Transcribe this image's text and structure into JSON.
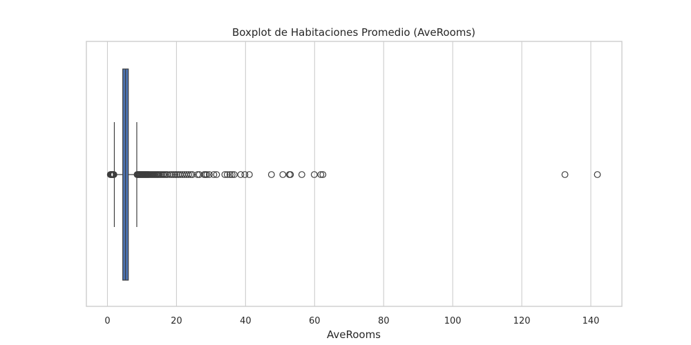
{
  "chart_data": {
    "type": "boxplot",
    "orientation": "horizontal",
    "title": "Boxplot de Habitaciones Promedio (AveRooms)",
    "xlabel": "AveRooms",
    "ylabel": "",
    "xlim": [
      -6.1,
      149
    ],
    "xticks": [
      0,
      20,
      40,
      60,
      80,
      100,
      120,
      140
    ],
    "grid": "vertical",
    "colors": {
      "box": "#4c72b0",
      "line": "#3d3d3d",
      "grid": "#cccccc"
    },
    "series": [
      {
        "whisker_low": 2.0,
        "q1": 4.44,
        "median": 5.23,
        "q3": 6.05,
        "whisker_high": 8.5,
        "outliers": [
          0.85,
          1.0,
          1.13,
          1.26,
          1.38,
          1.5,
          1.62,
          1.74,
          1.86,
          8.6,
          8.8,
          9.0,
          9.2,
          9.4,
          9.6,
          9.8,
          10.0,
          10.2,
          10.4,
          10.6,
          10.8,
          11.0,
          11.2,
          11.4,
          11.6,
          11.8,
          12.0,
          12.3,
          12.6,
          12.9,
          13.2,
          13.5,
          13.8,
          14.1,
          14.4,
          14.7,
          15.0,
          15.4,
          15.8,
          16.2,
          16.6,
          17.0,
          17.4,
          18.1,
          18.6,
          19.1,
          19.6,
          20.1,
          20.6,
          21.1,
          21.7,
          22.3,
          22.9,
          23.5,
          24.1,
          24.6,
          26.1,
          26.6,
          28.0,
          28.4,
          28.8,
          29.5,
          30.8,
          31.6,
          34.0,
          34.7,
          35.5,
          36.1,
          36.7,
          38.6,
          39.8,
          41.1,
          47.5,
          50.8,
          52.7,
          53.0,
          56.3,
          59.9,
          61.8,
          62.4,
          132.5,
          141.9
        ]
      }
    ]
  }
}
